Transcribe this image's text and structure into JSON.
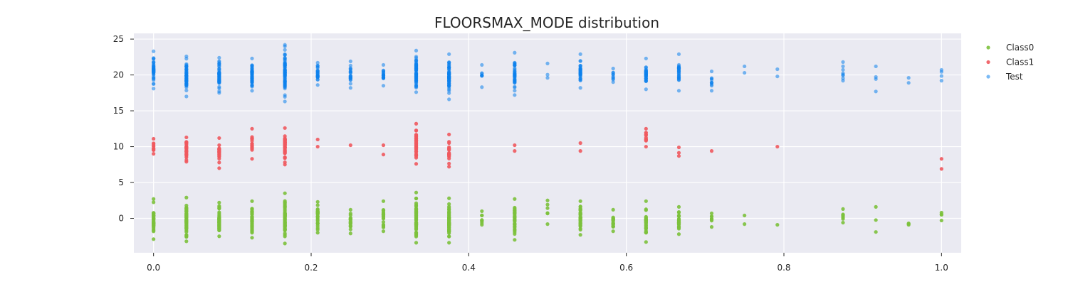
{
  "chart_data": {
    "type": "scatter",
    "title": "FLOORSMAX_MODE distribution",
    "xlabel": "",
    "ylabel": "",
    "xlim": [
      -0.025,
      1.025
    ],
    "ylim": [
      -4.8,
      25.8
    ],
    "xticks": [
      0.0,
      0.2,
      0.4,
      0.6,
      0.8,
      1.0
    ],
    "xtick_labels": [
      "0.0",
      "0.2",
      "0.4",
      "0.6",
      "0.8",
      "1.0"
    ],
    "yticks": [
      0,
      5,
      10,
      15,
      20,
      25
    ],
    "ytick_labels": [
      "0",
      "5",
      "10",
      "15",
      "20",
      "25"
    ],
    "grid": true,
    "background": "#eaeaf2",
    "legend_position": "right",
    "series": [
      {
        "name": "Class0",
        "color": "#7cc13c",
        "groups": [
          {
            "x": 0.0,
            "min": -2.9,
            "max": 2.7,
            "n": 45
          },
          {
            "x": 0.0417,
            "min": -3.2,
            "max": 2.9,
            "n": 60
          },
          {
            "x": 0.0833,
            "min": -2.5,
            "max": 2.2,
            "n": 50
          },
          {
            "x": 0.125,
            "min": -2.7,
            "max": 2.4,
            "n": 50
          },
          {
            "x": 0.1667,
            "min": -3.5,
            "max": 3.5,
            "n": 70
          },
          {
            "x": 0.2083,
            "min": -2.0,
            "max": 2.3,
            "n": 30
          },
          {
            "x": 0.25,
            "min": -2.1,
            "max": 1.2,
            "n": 20
          },
          {
            "x": 0.2917,
            "min": -1.8,
            "max": 2.4,
            "n": 22
          },
          {
            "x": 0.3333,
            "min": -3.4,
            "max": 3.6,
            "n": 70
          },
          {
            "x": 0.375,
            "min": -3.4,
            "max": 2.8,
            "n": 60
          },
          {
            "x": 0.4167,
            "min": -0.9,
            "max": 1.0,
            "n": 8
          },
          {
            "x": 0.4583,
            "min": -3.0,
            "max": 2.7,
            "n": 40
          },
          {
            "x": 0.5,
            "min": -0.8,
            "max": 2.5,
            "n": 6
          },
          {
            "x": 0.5417,
            "min": -2.3,
            "max": 2.4,
            "n": 40
          },
          {
            "x": 0.5833,
            "min": -1.8,
            "max": 1.2,
            "n": 20
          },
          {
            "x": 0.625,
            "min": -3.3,
            "max": 2.4,
            "n": 30
          },
          {
            "x": 0.6667,
            "min": -2.2,
            "max": 1.6,
            "n": 28
          },
          {
            "x": 0.7083,
            "min": -1.2,
            "max": 0.7,
            "n": 8
          },
          {
            "x": 0.75,
            "min": -0.8,
            "max": 0.4,
            "n": 2
          },
          {
            "x": 0.7917,
            "min": -0.9,
            "max": -0.9,
            "n": 1
          },
          {
            "x": 0.875,
            "min": -0.6,
            "max": 1.3,
            "n": 8
          },
          {
            "x": 0.9167,
            "min": -1.9,
            "max": 1.6,
            "n": 3
          },
          {
            "x": 0.9583,
            "min": -0.9,
            "max": -0.7,
            "n": 3
          },
          {
            "x": 1.0,
            "min": -0.3,
            "max": 0.8,
            "n": 4
          }
        ]
      },
      {
        "name": "Class1",
        "color": "#f0595e",
        "groups": [
          {
            "x": 0.0,
            "min": 9.0,
            "max": 11.1,
            "n": 10
          },
          {
            "x": 0.0417,
            "min": 7.9,
            "max": 11.3,
            "n": 30
          },
          {
            "x": 0.0833,
            "min": 7.0,
            "max": 11.2,
            "n": 22
          },
          {
            "x": 0.125,
            "min": 8.3,
            "max": 12.5,
            "n": 20
          },
          {
            "x": 0.1667,
            "min": 7.5,
            "max": 12.6,
            "n": 50
          },
          {
            "x": 0.2083,
            "min": 10.0,
            "max": 11.0,
            "n": 2
          },
          {
            "x": 0.25,
            "min": 10.2,
            "max": 10.2,
            "n": 1
          },
          {
            "x": 0.2917,
            "min": 8.9,
            "max": 10.2,
            "n": 2
          },
          {
            "x": 0.3333,
            "min": 7.6,
            "max": 13.2,
            "n": 50
          },
          {
            "x": 0.375,
            "min": 7.2,
            "max": 11.7,
            "n": 18
          },
          {
            "x": 0.4583,
            "min": 9.4,
            "max": 10.2,
            "n": 2
          },
          {
            "x": 0.5417,
            "min": 9.4,
            "max": 10.5,
            "n": 2
          },
          {
            "x": 0.625,
            "min": 10.0,
            "max": 12.5,
            "n": 12
          },
          {
            "x": 0.6667,
            "min": 8.7,
            "max": 9.9,
            "n": 3
          },
          {
            "x": 0.7083,
            "min": 9.4,
            "max": 9.4,
            "n": 1
          },
          {
            "x": 0.7917,
            "min": 10.0,
            "max": 10.0,
            "n": 1
          },
          {
            "x": 1.0,
            "min": 6.9,
            "max": 8.3,
            "n": 2
          }
        ]
      },
      {
        "name": "Test",
        "color": "#0d82ec",
        "groups": [
          {
            "x": 0.0,
            "min": 18.1,
            "max": 23.3,
            "n": 45
          },
          {
            "x": 0.0417,
            "min": 17.0,
            "max": 22.6,
            "n": 60
          },
          {
            "x": 0.0833,
            "min": 17.5,
            "max": 22.4,
            "n": 55
          },
          {
            "x": 0.125,
            "min": 17.8,
            "max": 22.3,
            "n": 55
          },
          {
            "x": 0.1667,
            "min": 16.3,
            "max": 24.2,
            "n": 75
          },
          {
            "x": 0.2083,
            "min": 18.6,
            "max": 21.7,
            "n": 25
          },
          {
            "x": 0.25,
            "min": 18.2,
            "max": 21.9,
            "n": 22
          },
          {
            "x": 0.2917,
            "min": 18.5,
            "max": 21.4,
            "n": 20
          },
          {
            "x": 0.3333,
            "min": 17.6,
            "max": 23.4,
            "n": 70
          },
          {
            "x": 0.375,
            "min": 16.6,
            "max": 22.9,
            "n": 60
          },
          {
            "x": 0.4167,
            "min": 18.3,
            "max": 21.4,
            "n": 8
          },
          {
            "x": 0.4583,
            "min": 17.2,
            "max": 23.1,
            "n": 40
          },
          {
            "x": 0.5,
            "min": 19.6,
            "max": 21.6,
            "n": 3
          },
          {
            "x": 0.5417,
            "min": 18.2,
            "max": 22.9,
            "n": 35
          },
          {
            "x": 0.5833,
            "min": 19.0,
            "max": 20.9,
            "n": 10
          },
          {
            "x": 0.625,
            "min": 18.0,
            "max": 22.3,
            "n": 35
          },
          {
            "x": 0.6667,
            "min": 17.8,
            "max": 22.9,
            "n": 30
          },
          {
            "x": 0.7083,
            "min": 17.8,
            "max": 20.5,
            "n": 10
          },
          {
            "x": 0.75,
            "min": 20.3,
            "max": 21.2,
            "n": 2
          },
          {
            "x": 0.7917,
            "min": 19.8,
            "max": 20.8,
            "n": 2
          },
          {
            "x": 0.875,
            "min": 19.2,
            "max": 21.8,
            "n": 8
          },
          {
            "x": 0.9167,
            "min": 17.7,
            "max": 21.2,
            "n": 4
          },
          {
            "x": 0.9583,
            "min": 18.9,
            "max": 19.6,
            "n": 2
          },
          {
            "x": 1.0,
            "min": 19.2,
            "max": 20.7,
            "n": 4
          }
        ]
      }
    ]
  }
}
